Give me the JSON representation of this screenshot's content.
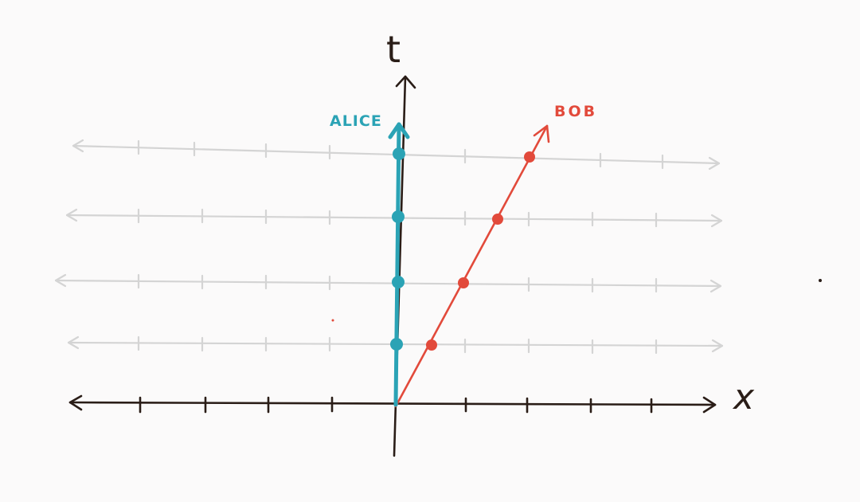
{
  "diagram": {
    "axis_labels": {
      "time": "t",
      "space": "x"
    },
    "observers": [
      {
        "name": "ALICE",
        "color": "#2ba3b5",
        "velocity": 0,
        "events_t": [
          1,
          2,
          3,
          4
        ]
      },
      {
        "name": "BOB",
        "color": "#e24a3b",
        "velocity": 0.5,
        "events_t": [
          1,
          2,
          3,
          4
        ]
      }
    ],
    "time_slices": [
      1,
      2,
      3,
      4
    ],
    "x_ticks": [
      -4,
      -3,
      -2,
      -1,
      1,
      2,
      3,
      4
    ],
    "colors": {
      "axis": "#2a1d17",
      "grid": "#d4d4d4"
    }
  }
}
